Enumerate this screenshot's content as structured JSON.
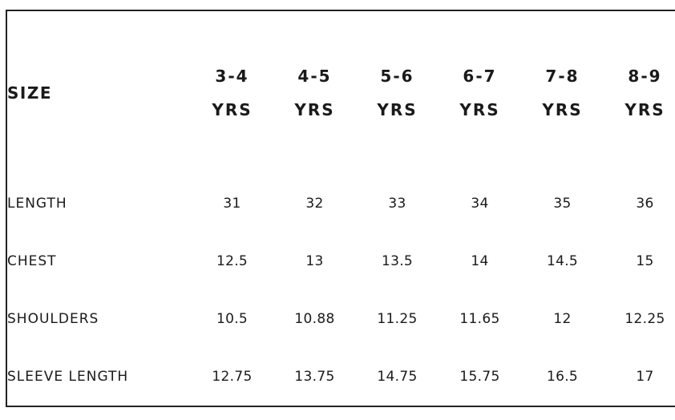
{
  "table": {
    "corner_label": "SIZE",
    "sizes": [
      {
        "top": "3-4",
        "bottom": "YRS"
      },
      {
        "top": "4-5",
        "bottom": "YRS"
      },
      {
        "top": "5-6",
        "bottom": "YRS"
      },
      {
        "top": "6-7",
        "bottom": "YRS"
      },
      {
        "top": "7-8",
        "bottom": "YRS"
      },
      {
        "top": "8-9",
        "bottom": "YRS"
      }
    ],
    "rows": [
      {
        "label": "LENGTH",
        "values": [
          "31",
          "32",
          "33",
          "34",
          "35",
          "36"
        ]
      },
      {
        "label": "CHEST",
        "values": [
          "12.5",
          "13",
          "13.5",
          "14",
          "14.5",
          "15"
        ]
      },
      {
        "label": "SHOULDERS",
        "values": [
          "10.5",
          "10.88",
          "11.25",
          "11.65",
          "12",
          "12.25"
        ]
      },
      {
        "label": "SLEEVE LENGTH",
        "values": [
          "12.75",
          "13.75",
          "14.75",
          "15.75",
          "16.5",
          "17"
        ]
      }
    ]
  }
}
